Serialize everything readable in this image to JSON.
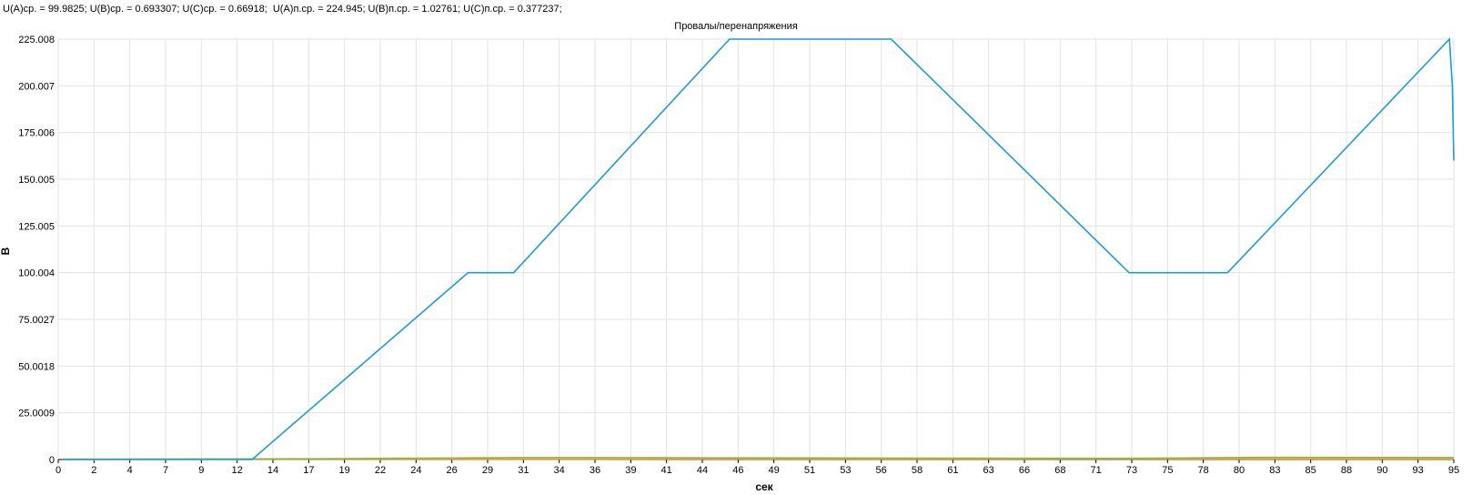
{
  "stats_line": "U(A)ср. = 99.9825; U(B)ср. = 0.693307; U(C)ср. = 0.66918;  U(A)п.ср. = 224.945; U(B)п.ср. = 1.02761; U(C)п.ср. = 0.377237;",
  "chart_data": {
    "type": "line",
    "title": "Провалы/перенапряжения",
    "xlabel": "сек",
    "ylabel": "В",
    "grid": true,
    "xlim": [
      0,
      95
    ],
    "ylim": [
      0,
      225.008
    ],
    "x_ticks": [
      "0",
      "2",
      "4",
      "7",
      "9",
      "12",
      "14",
      "17",
      "19",
      "22",
      "24",
      "26",
      "29",
      "31",
      "34",
      "36",
      "39",
      "41",
      "44",
      "46",
      "49",
      "51",
      "53",
      "56",
      "58",
      "61",
      "63",
      "66",
      "68",
      "71",
      "73",
      "75",
      "78",
      "80",
      "83",
      "85",
      "88",
      "90",
      "93",
      "95"
    ],
    "y_ticks": [
      "0",
      "25.0009",
      "50.0018",
      "75.0027",
      "100.004",
      "125.005",
      "150.005",
      "175.006",
      "200.007",
      "225.008"
    ],
    "colors": {
      "A": "#1f9ad6",
      "B": "#8db33a",
      "C": "#f0a030"
    },
    "series": [
      {
        "key": "A",
        "x": [
          0.3,
          13.2,
          27.9,
          31.0,
          45.7,
          56.7,
          72.9,
          79.6,
          94.7,
          94.9,
          95.0
        ],
        "y": [
          0,
          0,
          100.004,
          100.004,
          225.008,
          225.008,
          100.004,
          100.004,
          225.008,
          200,
          160
        ]
      },
      {
        "key": "B",
        "x": [
          0.3,
          18.0,
          31.8,
          72.5,
          82.0,
          95.0
        ],
        "y": [
          0,
          0.4,
          1.0,
          0.6,
          1.1,
          1.0
        ]
      },
      {
        "key": "C",
        "x": [
          0.3,
          95.0
        ],
        "y": [
          0.2,
          0.3
        ]
      }
    ]
  }
}
